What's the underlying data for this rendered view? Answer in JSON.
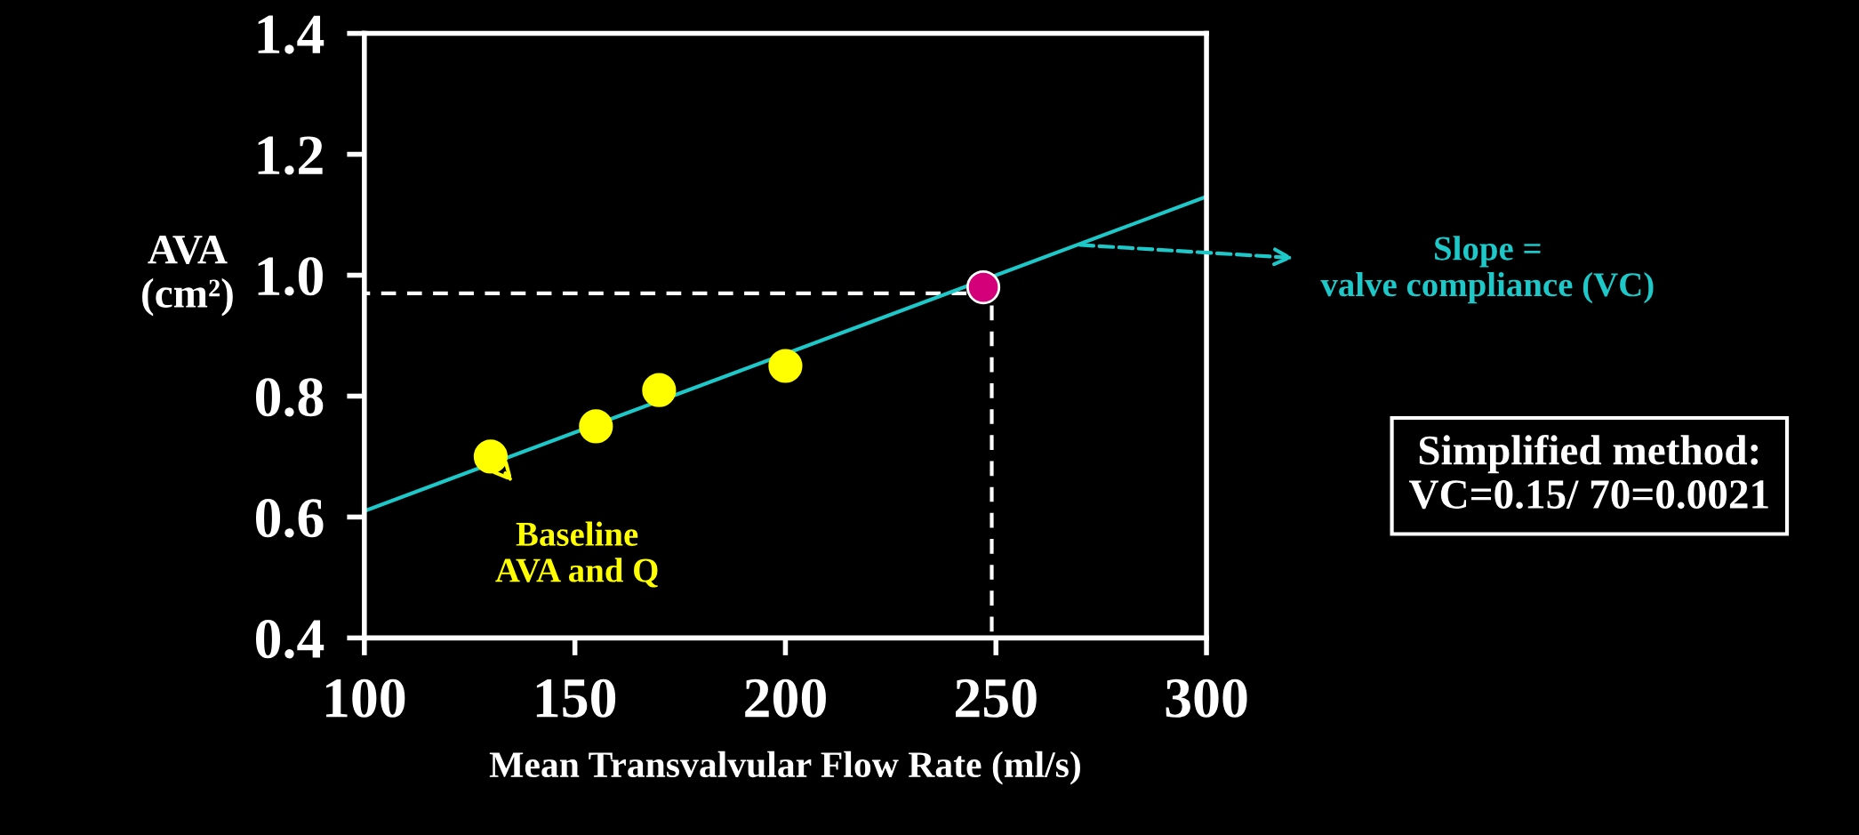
{
  "chart_data": {
    "type": "scatter",
    "xlabel": "Mean Transvalvular Flow Rate (ml/s)",
    "ylabel": "AVA\n(cm²)",
    "xlim": [
      100,
      300
    ],
    "xticks": [
      100,
      150,
      200,
      250,
      300
    ],
    "ylim": [
      0.4,
      1.4
    ],
    "yticks": [
      0.4,
      0.6,
      0.8,
      {
        "value": 1.0,
        "label": "1.0"
      },
      1.2,
      1.4
    ],
    "grid": false,
    "marker": "circle",
    "series": [
      {
        "type": "line",
        "color": "#ffffff",
        "line_style": "dashed",
        "marker": "none",
        "x": [
          243,
          100
        ],
        "values": [
          0.97,
          0.97
        ]
      },
      {
        "type": "line",
        "color": "#ffffff",
        "line_style": "dashed",
        "marker": "none",
        "x": [
          249,
          249
        ],
        "values": [
          0.95,
          0.4
        ]
      },
      {
        "type": "line",
        "color": "#1ec8c8",
        "line_style": "solid",
        "marker": "none",
        "x": [
          100,
          300
        ],
        "values": [
          0.61,
          1.13
        ]
      },
      {
        "color": "#ffff00",
        "x": [
          130,
          155,
          170,
          200
        ],
        "values": [
          0.7,
          0.75,
          0.81,
          0.85
        ]
      },
      {
        "color": "#d4007a",
        "x": [
          247
        ],
        "values": [
          0.98
        ]
      }
    ],
    "annotations": [
      {
        "text": "Baseline\nAVA and Q",
        "x": 130,
        "y": 0.7
      },
      {
        "text": "Slope =\nvalve compliance (VC)",
        "x": 270,
        "y": 1.05
      },
      "Simplified method:\nVC=0.15/ 70=0.0021"
    ]
  }
}
